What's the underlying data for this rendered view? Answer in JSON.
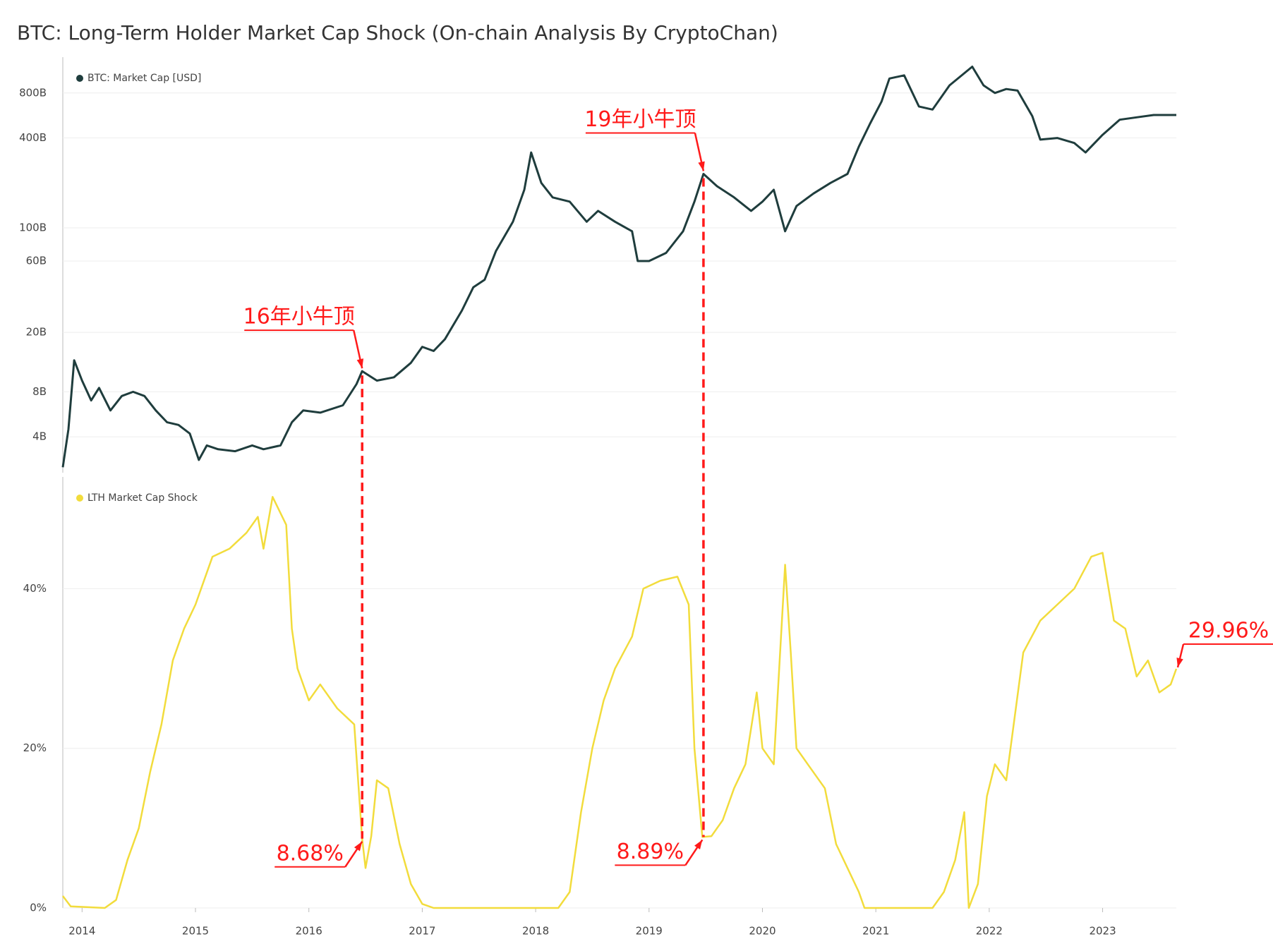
{
  "chart_data": [
    {
      "type": "line",
      "title": "BTC: Long-Term Holder Market Cap Shock (On-chain Analysis By CryptoChan)",
      "log": true,
      "grid": true,
      "xlim": [
        2013.83,
        2023.65
      ],
      "ylim": [
        2300000000.0,
        1390000000000.0
      ],
      "yticks": [
        {
          "value": 4000000000.0,
          "label": "4B"
        },
        {
          "value": 8000000000.0,
          "label": "8B"
        },
        {
          "value": 20000000000.0,
          "label": "20B"
        },
        {
          "value": 60000000000.0,
          "label": "60B"
        },
        {
          "value": 100000000000.0,
          "label": "100B"
        },
        {
          "value": 400000000000.0,
          "label": "400B"
        },
        {
          "value": 800000000000.0,
          "label": "800B"
        }
      ],
      "x": [
        2013.83,
        2013.88,
        2013.93,
        2014.0,
        2014.08,
        2014.15,
        2014.25,
        2014.35,
        2014.45,
        2014.55,
        2014.65,
        2014.75,
        2014.85,
        2014.95,
        2015.03,
        2015.1,
        2015.2,
        2015.35,
        2015.5,
        2015.6,
        2015.75,
        2015.85,
        2015.95,
        2016.1,
        2016.3,
        2016.42,
        2016.47,
        2016.6,
        2016.75,
        2016.9,
        2017.0,
        2017.1,
        2017.2,
        2017.35,
        2017.45,
        2017.55,
        2017.65,
        2017.8,
        2017.9,
        2017.96,
        2018.05,
        2018.15,
        2018.3,
        2018.45,
        2018.55,
        2018.7,
        2018.85,
        2018.9,
        2019.0,
        2019.15,
        2019.3,
        2019.4,
        2019.48,
        2019.6,
        2019.75,
        2019.9,
        2020.0,
        2020.1,
        2020.2,
        2020.3,
        2020.45,
        2020.6,
        2020.75,
        2020.85,
        2020.95,
        2021.05,
        2021.12,
        2021.25,
        2021.38,
        2021.5,
        2021.65,
        2021.85,
        2021.95,
        2022.05,
        2022.15,
        2022.25,
        2022.38,
        2022.45,
        2022.6,
        2022.75,
        2022.85,
        2023.0,
        2023.15,
        2023.3,
        2023.45,
        2023.6,
        2023.65
      ],
      "series": [
        {
          "name": "BTC: Market Cap [USD]",
          "color": "#1f3d3d",
          "values": [
            2500000000.0,
            4500000000.0,
            13000000000.0,
            9500000000.0,
            7000000000.0,
            8500000000.0,
            6000000000.0,
            7500000000.0,
            8000000000.0,
            7500000000.0,
            6000000000.0,
            5000000000.0,
            4800000000.0,
            4200000000.0,
            2800000000.0,
            3500000000.0,
            3300000000.0,
            3200000000.0,
            3500000000.0,
            3300000000.0,
            3500000000.0,
            5000000000.0,
            6000000000.0,
            5800000000.0,
            6500000000.0,
            9000000000.0,
            11000000000.0,
            9500000000.0,
            10000000000.0,
            12500000000.0,
            16000000000.0,
            15000000000.0,
            18000000000.0,
            28000000000.0,
            40000000000.0,
            45000000000.0,
            70000000000.0,
            110000000000.0,
            180000000000.0,
            320000000000.0,
            200000000000.0,
            160000000000.0,
            150000000000.0,
            110000000000.0,
            130000000000.0,
            110000000000.0,
            95000000000.0,
            60000000000.0,
            60000000000.0,
            68000000000.0,
            95000000000.0,
            150000000000.0,
            230000000000.0,
            190000000000.0,
            160000000000.0,
            130000000000.0,
            150000000000.0,
            180000000000.0,
            95000000000.0,
            140000000000.0,
            170000000000.0,
            200000000000.0,
            230000000000.0,
            350000000000.0,
            500000000000.0,
            700000000000.0,
            1000000000000.0,
            1050000000000.0,
            650000000000.0,
            620000000000.0,
            900000000000.0,
            1200000000000.0,
            900000000000.0,
            800000000000.0,
            850000000000.0,
            830000000000.0,
            560000000000.0,
            390000000000.0,
            400000000000.0,
            370000000000.0,
            320000000000.0,
            420000000000.0,
            530000000000.0,
            550000000000.0,
            570000000000.0,
            570000000000.0,
            570000000000.0
          ]
        }
      ],
      "annotations": [
        {
          "text": "16年小牛顶",
          "x": 2016.47
        },
        {
          "text": "19年小牛顶",
          "x": 2019.48
        }
      ]
    },
    {
      "type": "line",
      "grid": true,
      "xlim": [
        2013.83,
        2023.65
      ],
      "ylim": [
        0,
        54
      ],
      "xticks": [
        2014,
        2015,
        2016,
        2017,
        2018,
        2019,
        2020,
        2021,
        2022,
        2023
      ],
      "yticks": [
        {
          "value": 0,
          "label": "0%"
        },
        {
          "value": 20,
          "label": "20%"
        },
        {
          "value": 40,
          "label": "40%"
        }
      ],
      "x": [
        2013.83,
        2013.9,
        2014.2,
        2014.3,
        2014.4,
        2014.5,
        2014.6,
        2014.7,
        2014.8,
        2014.9,
        2015.0,
        2015.05,
        2015.15,
        2015.3,
        2015.45,
        2015.55,
        2015.6,
        2015.68,
        2015.8,
        2015.85,
        2015.9,
        2016.0,
        2016.1,
        2016.25,
        2016.4,
        2016.47,
        2016.5,
        2016.55,
        2016.6,
        2016.7,
        2016.8,
        2016.9,
        2017.0,
        2017.1,
        2018.2,
        2018.3,
        2018.4,
        2018.5,
        2018.6,
        2018.7,
        2018.85,
        2018.95,
        2019.1,
        2019.25,
        2019.35,
        2019.4,
        2019.47,
        2019.55,
        2019.65,
        2019.75,
        2019.85,
        2019.95,
        2020.0,
        2020.1,
        2020.2,
        2020.25,
        2020.3,
        2020.4,
        2020.55,
        2020.65,
        2020.75,
        2020.85,
        2020.9,
        2021.5,
        2021.6,
        2021.7,
        2021.78,
        2021.82,
        2021.9,
        2021.98,
        2022.05,
        2022.15,
        2022.3,
        2022.45,
        2022.6,
        2022.75,
        2022.9,
        2023.0,
        2023.1,
        2023.2,
        2023.3,
        2023.4,
        2023.5,
        2023.6,
        2023.65
      ],
      "series": [
        {
          "name": "LTH Market Cap Shock",
          "color": "#f2dc3c",
          "values": [
            1.5,
            0.2,
            0,
            1,
            6,
            10,
            17,
            23,
            31,
            35,
            38,
            40,
            44,
            45,
            47,
            49,
            45,
            51.5,
            48,
            35,
            30,
            26,
            28,
            25,
            23,
            8.68,
            5,
            9,
            16,
            15,
            8,
            3,
            0.5,
            0,
            0,
            2,
            12,
            20,
            26,
            30,
            34,
            40,
            41,
            41.5,
            38,
            20,
            8.89,
            9,
            11,
            15,
            18,
            27,
            20,
            18,
            43,
            32,
            20,
            18,
            15,
            8,
            5,
            2,
            0,
            0,
            2,
            6,
            12,
            0,
            3,
            14,
            18,
            16,
            32,
            36,
            38,
            40,
            44,
            44.5,
            36,
            35,
            29,
            31,
            27,
            28,
            29.96
          ]
        }
      ],
      "annotations": [
        {
          "text": "8.68%",
          "x": 2016.47,
          "value": 8.68
        },
        {
          "text": "8.89%",
          "x": 2019.47,
          "value": 8.89
        },
        {
          "text": "29.96%",
          "x": 2023.65,
          "value": 29.96
        }
      ]
    }
  ]
}
